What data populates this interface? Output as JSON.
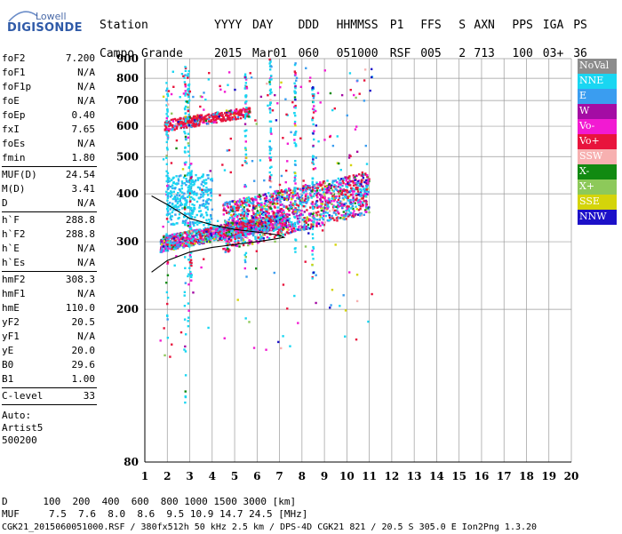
{
  "logo": {
    "line1": "Lowell",
    "line2": "DIGISONDE"
  },
  "header": {
    "labels": [
      "Station",
      "YYYY",
      "DAY",
      "DDD",
      "HHMMSS",
      "P1",
      "FFS",
      "S",
      "AXN",
      "PPS",
      "IGA",
      "PS"
    ],
    "values": [
      "Campo Grande",
      "2015",
      "Mar01",
      "060",
      "051000",
      "RSF",
      "005",
      "2",
      "713",
      "100",
      "03+",
      "36"
    ]
  },
  "params": {
    "group1": [
      {
        "k": "foF2",
        "v": "7.200"
      },
      {
        "k": "foF1",
        "v": "N/A"
      },
      {
        "k": "foF1p",
        "v": "N/A"
      },
      {
        "k": "foE",
        "v": "N/A"
      },
      {
        "k": "foEp",
        "v": "0.40"
      },
      {
        "k": "fxI",
        "v": "7.65"
      },
      {
        "k": "foEs",
        "v": "N/A"
      },
      {
        "k": "fmin",
        "v": "1.80"
      }
    ],
    "group2": [
      {
        "k": "MUF(D)",
        "v": "24.54"
      },
      {
        "k": "M(D)",
        "v": "3.41"
      },
      {
        "k": "D",
        "v": "N/A"
      }
    ],
    "group3": [
      {
        "k": "h`F",
        "v": "288.8"
      },
      {
        "k": "h`F2",
        "v": "288.8"
      },
      {
        "k": "h`E",
        "v": "N/A"
      },
      {
        "k": "h`Es",
        "v": "N/A"
      }
    ],
    "group4": [
      {
        "k": "hmF2",
        "v": "308.3"
      },
      {
        "k": "hmF1",
        "v": "N/A"
      },
      {
        "k": "hmE",
        "v": "110.0"
      },
      {
        "k": "yF2",
        "v": "20.5"
      },
      {
        "k": "yF1",
        "v": "N/A"
      },
      {
        "k": "yE",
        "v": "20.0"
      },
      {
        "k": "B0",
        "v": "29.6"
      },
      {
        "k": "B1",
        "v": "1.00"
      }
    ],
    "group5": [
      {
        "k": "C-level",
        "v": "33"
      }
    ],
    "auto": [
      "Auto:",
      "Artist5",
      "500200"
    ]
  },
  "legend": [
    {
      "label": "NoVal",
      "color": "#8c8c8c"
    },
    {
      "label": "NNE",
      "color": "#19d6f2"
    },
    {
      "label": "E",
      "color": "#3a9df0"
    },
    {
      "label": "W",
      "color": "#a40ca4"
    },
    {
      "label": "Vo-",
      "color": "#f21ad2"
    },
    {
      "label": "Vo+",
      "color": "#e8143c"
    },
    {
      "label": "SSW",
      "color": "#f7b0b0"
    },
    {
      "label": "X-",
      "color": "#118a11"
    },
    {
      "label": "X+",
      "color": "#8dc95a"
    },
    {
      "label": "SSE",
      "color": "#d4d40a"
    },
    {
      "label": "NNW",
      "color": "#1c10c8"
    }
  ],
  "chart_data": {
    "type": "scatter",
    "title": "",
    "xlabel": "",
    "ylabel": "",
    "xlim": [
      1,
      20
    ],
    "ylim": [
      80,
      900
    ],
    "yscale": "log",
    "x_ticks": [
      "1",
      "2",
      "3",
      "4",
      "5",
      "6",
      "7",
      "8",
      "9",
      "10",
      "11",
      "12",
      "13",
      "14",
      "15",
      "16",
      "17",
      "18",
      "19",
      "20"
    ],
    "y_ticks": [
      {
        "label": "80",
        "v": 80
      },
      {
        "label": "200",
        "v": 200
      },
      {
        "label": "300",
        "v": 300
      },
      {
        "label": "400",
        "v": 400
      },
      {
        "label": "500",
        "v": 500
      },
      {
        "label": "600",
        "v": 600
      },
      {
        "label": "700",
        "v": 700
      },
      {
        "label": "800",
        "v": 800
      },
      {
        "label": "900",
        "v": 900
      }
    ],
    "grid": true,
    "legend_position": "right",
    "clusters": [
      {
        "name": "F2 trace",
        "x_from": 1.7,
        "x_to": 7.3,
        "h_from": 290,
        "h_to": 335
      },
      {
        "name": "F2 spread",
        "x_from": 4.5,
        "x_to": 11.0,
        "h_from": 330,
        "h_to": 440
      },
      {
        "name": "second hop",
        "x_from": 1.9,
        "x_to": 6.8,
        "h_from": 595,
        "h_to": 680
      },
      {
        "name": "Es-like",
        "x_from": 2.0,
        "x_to": 3.0,
        "h_from": 330,
        "h_to": 450
      }
    ],
    "profile_curve": [
      {
        "x": 1.3,
        "h": 250
      },
      {
        "x": 2.0,
        "h": 268
      },
      {
        "x": 3.0,
        "h": 282
      },
      {
        "x": 4.0,
        "h": 290
      },
      {
        "x": 5.0,
        "h": 295
      },
      {
        "x": 6.0,
        "h": 300
      },
      {
        "x": 6.8,
        "h": 305
      },
      {
        "x": 7.2,
        "h": 308
      },
      {
        "x": 7.0,
        "h": 312
      },
      {
        "x": 6.0,
        "h": 318
      },
      {
        "x": 5.0,
        "h": 323
      },
      {
        "x": 4.0,
        "h": 332
      },
      {
        "x": 3.0,
        "h": 345
      },
      {
        "x": 2.0,
        "h": 375
      },
      {
        "x": 1.3,
        "h": 395
      }
    ]
  },
  "footer": {
    "line1": "D      100  200  400  600  800 1000 1500 3000 [km]",
    "line2": "MUF     7.5  7.6  8.0  8.6  9.5 10.9 14.7 24.5 [MHz]",
    "line3": "CGK21_2015060051000.RSF / 380fx512h 50 kHz 2.5 km / DPS-4D CGK21 821 / 20.5 S 305.0 E Ion2Png 1.3.20"
  }
}
